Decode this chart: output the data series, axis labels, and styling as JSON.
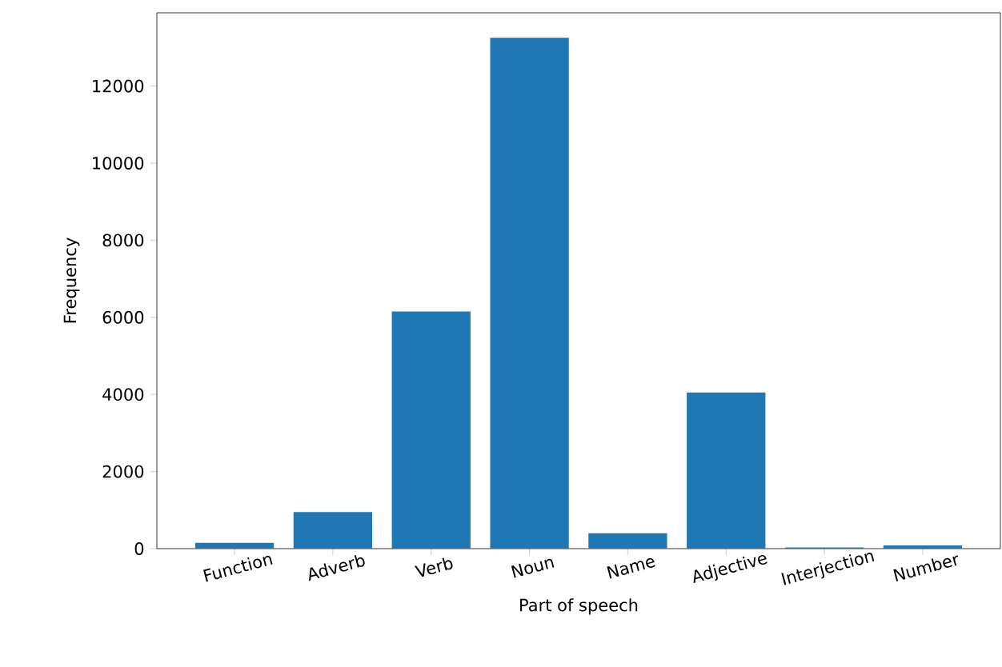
{
  "chart_data": {
    "type": "bar",
    "xlabel": "Part of speech",
    "ylabel": "Frequency",
    "categories": [
      "Function",
      "Adverb",
      "Verb",
      "Noun",
      "Name",
      "Adjective",
      "Interjection",
      "Number"
    ],
    "values": [
      150,
      950,
      6150,
      13250,
      400,
      4050,
      30,
      80
    ],
    "color": "#1f77b4",
    "ylim": [
      0,
      13900
    ],
    "yticks": [
      0,
      2000,
      4000,
      6000,
      8000,
      10000,
      12000
    ],
    "grid": false
  }
}
